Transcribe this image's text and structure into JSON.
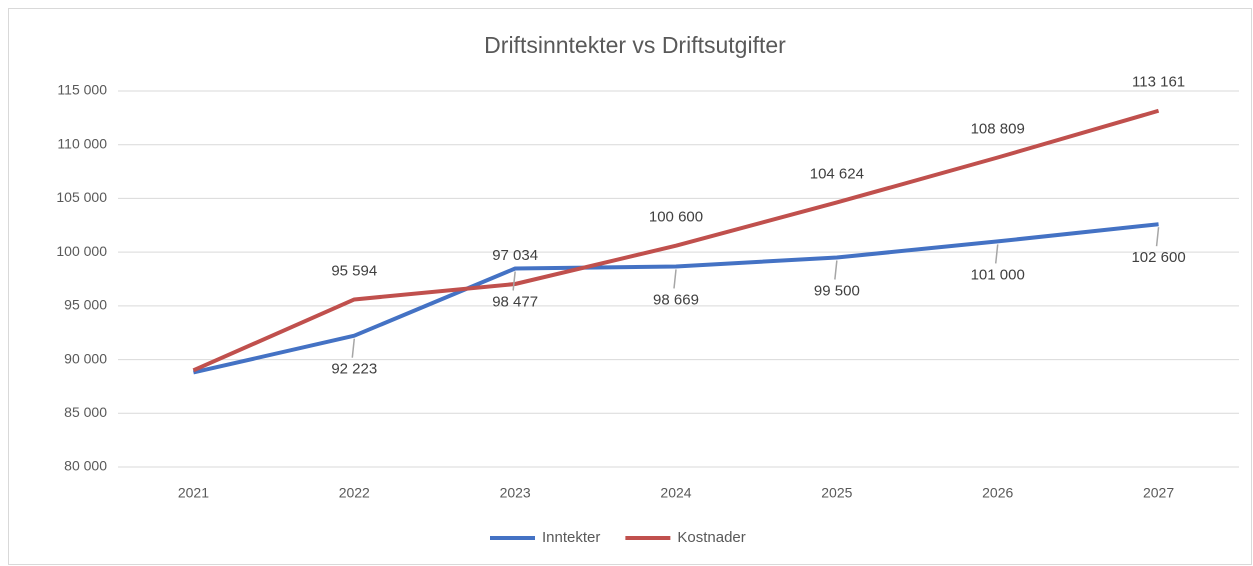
{
  "chart_data": {
    "type": "line",
    "title": "Driftsinntekter vs Driftsutgifter",
    "categories": [
      "2021",
      "2022",
      "2023",
      "2024",
      "2025",
      "2026",
      "2027"
    ],
    "series": [
      {
        "name": "Inntekter",
        "color": "#4472c4",
        "values": [
          88800,
          92223,
          98477,
          98669,
          99500,
          101000,
          102600
        ],
        "value_labels": [
          null,
          "92 223",
          "98 477",
          "98 669",
          "99 500",
          "101 000",
          "102 600"
        ]
      },
      {
        "name": "Kostnader",
        "color": "#c0504d",
        "values": [
          89000,
          95594,
          97034,
          100600,
          104624,
          108809,
          113161
        ],
        "value_labels": [
          null,
          "95 594",
          "97 034",
          "100 600",
          "104 624",
          "108 809",
          "113 161"
        ]
      }
    ],
    "ylim": [
      80000,
      115000
    ],
    "yticks": [
      {
        "value": 80000,
        "label": "80 000"
      },
      {
        "value": 85000,
        "label": "85 000"
      },
      {
        "value": 90000,
        "label": "90 000"
      },
      {
        "value": 95000,
        "label": "95 000"
      },
      {
        "value": 100000,
        "label": "100 000"
      },
      {
        "value": 105000,
        "label": "105 000"
      },
      {
        "value": 110000,
        "label": "110 000"
      },
      {
        "value": 115000,
        "label": "115 000"
      }
    ],
    "grid": true,
    "legend": "bottom"
  }
}
